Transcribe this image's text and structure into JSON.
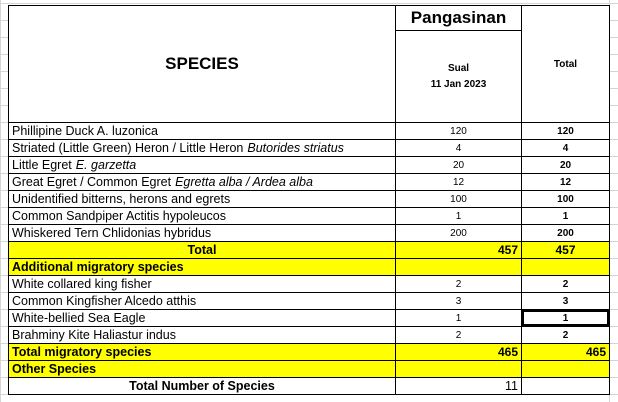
{
  "header": {
    "species": "SPECIES",
    "region": "Pangasinan",
    "site": "Sual",
    "date": "11 Jan 2023",
    "total": "Total"
  },
  "species": [
    {
      "name": "Phillipine Duck A. luzonica",
      "sual": 120,
      "total": 120
    },
    {
      "name": "Striated (Little Green) Heron / Little Heron",
      "scientific": "Butorides striatus",
      "sual": 4,
      "total": 4
    },
    {
      "name": "Little Egret",
      "scientific": "E. garzetta",
      "sual": 20,
      "total": 20
    },
    {
      "name": "Great Egret / Common Egret",
      "scientific": "Egretta alba / Ardea alba",
      "sual": 12,
      "total": 12
    },
    {
      "name": "Unidentified bitterns, herons and egrets",
      "sual": 100,
      "total": 100
    },
    {
      "name": "Common Sandpiper Actitis hypoleucos",
      "sual": 1,
      "total": 1
    },
    {
      "name": "Whiskered Tern Chlidonias hybridus",
      "sual": 200,
      "total": 200
    }
  ],
  "total_row": {
    "label": "Total",
    "sual": 457,
    "total": 457
  },
  "additional_header": "Additional migratory species",
  "migratory": [
    {
      "name": "White collared king fisher",
      "sual": 2,
      "total": 2
    },
    {
      "name": "Common Kingfisher Alcedo atthis",
      "sual": 3,
      "total": 3
    },
    {
      "name": "White-bellied Sea Eagle",
      "sual": 1,
      "total": 1
    },
    {
      "name": "Brahminy Kite Haliastur indus",
      "sual": 2,
      "total": 2
    }
  ],
  "total_migratory": {
    "label": "Total migratory species",
    "sual": 465,
    "total": 465
  },
  "other_species": "Other Species",
  "total_number": {
    "label": "Total Number of Species",
    "value": 11
  }
}
